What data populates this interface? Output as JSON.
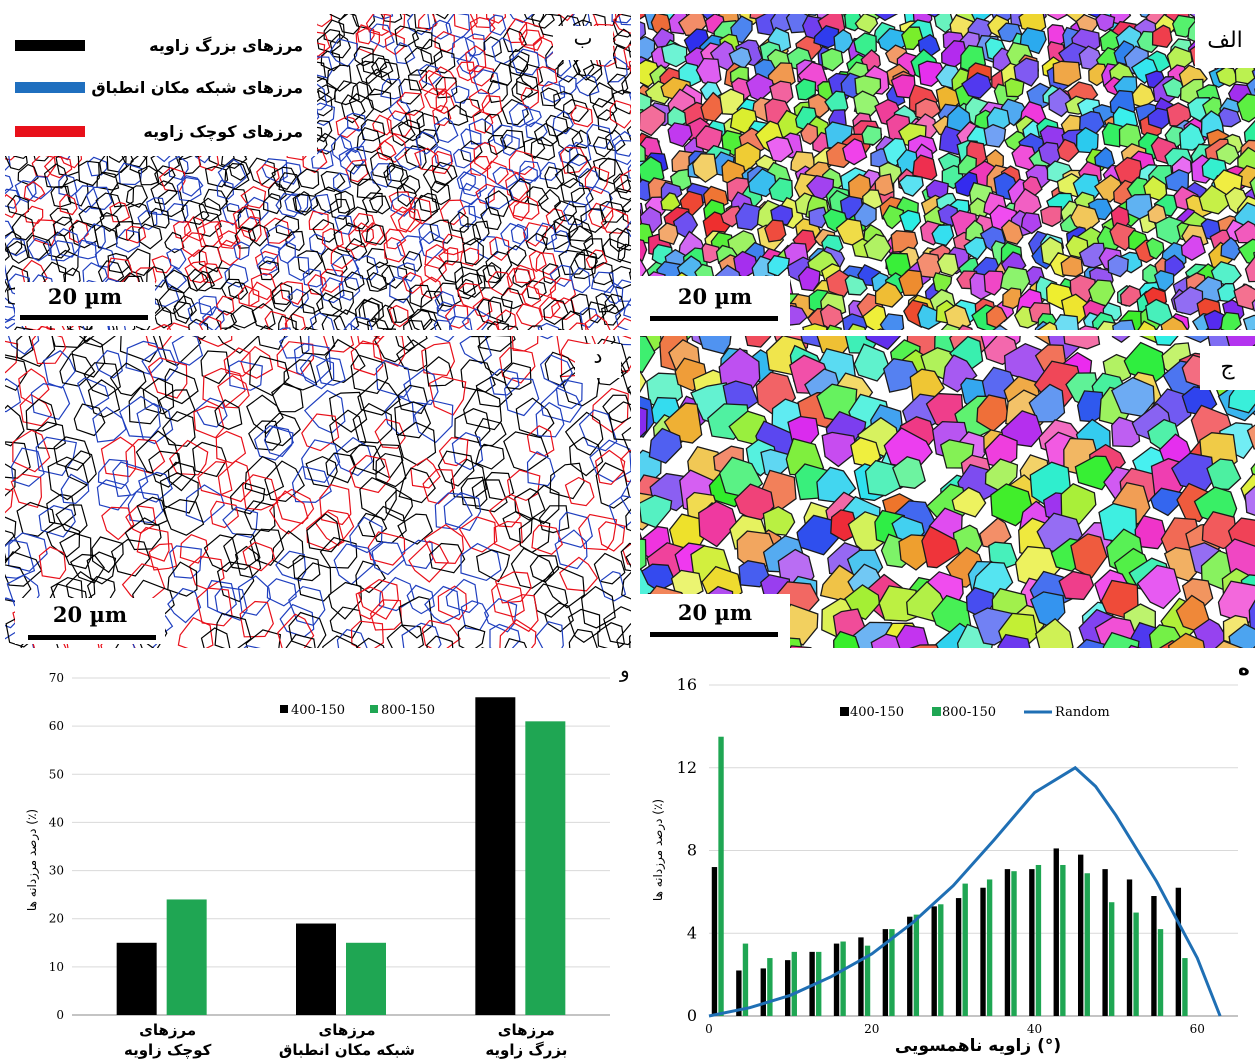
{
  "panels": {
    "b": {
      "letter": "ب"
    },
    "a": {
      "letter": "الف"
    },
    "d": {
      "letter": "د"
    },
    "c": {
      "letter": "ج"
    },
    "f": {
      "letter": "و"
    },
    "e": {
      "letter": "ه"
    }
  },
  "scale_bar": "20 µm",
  "legend_boundaries": [
    {
      "label": "مرزهای بزرگ زاویه",
      "color": "#000000"
    },
    {
      "label": "مرزهای شبکه مکان انطباق",
      "color": "#1f6fbf"
    },
    {
      "label": "مرزهای کوچک زاویه",
      "color": "#e8101a"
    }
  ],
  "colors": {
    "s400": "#000000",
    "s800": "#1fa653",
    "random": "#1f6fb4"
  },
  "chart_data": [
    {
      "type": "bar",
      "panel": "و",
      "ylabel": "درصد مرزدانه ها (٪)",
      "ylim": [
        0,
        70
      ],
      "yticks": [
        "0",
        "10",
        "20",
        "30",
        "40",
        "50",
        "60",
        "70"
      ],
      "categories": [
        [
          "مرزهای",
          "کوچک زاویه"
        ],
        [
          "مرزهای",
          "شبکه مکان انطباق"
        ],
        [
          "مرزهای",
          "بزرگ زاویه"
        ]
      ],
      "series": [
        {
          "name": "400-150",
          "values": [
            15,
            19,
            66
          ]
        },
        {
          "name": "800-150",
          "values": [
            24,
            15,
            61
          ]
        }
      ],
      "legend": "top-center",
      "grid": true
    },
    {
      "type": "bar",
      "panel": "ه",
      "xlabel": "زاویه ناهمسویی (°)",
      "ylabel": "درصد مرزدانه ها (٪)",
      "xlim": [
        0,
        65
      ],
      "ylim": [
        0,
        16
      ],
      "xticks": [
        "0",
        "20",
        "40",
        "60"
      ],
      "yticks": [
        "0",
        "4",
        "8",
        "12",
        "16"
      ],
      "x": [
        1,
        4,
        7,
        10,
        13,
        16,
        19,
        22,
        25,
        28,
        31,
        34,
        37,
        40,
        43,
        46,
        49,
        52,
        55,
        58,
        61
      ],
      "series": [
        {
          "name": "400-150",
          "type": "bar",
          "values": [
            7.2,
            2.2,
            2.3,
            2.7,
            3.1,
            3.5,
            3.8,
            4.2,
            4.8,
            5.3,
            5.7,
            6.2,
            7.1,
            7.1,
            8.1,
            7.8,
            7.1,
            6.6,
            5.8,
            6.2,
            0
          ]
        },
        {
          "name": "800-150",
          "type": "bar",
          "values": [
            13.5,
            3.5,
            2.8,
            3.1,
            3.1,
            3.6,
            3.4,
            4.2,
            4.9,
            5.4,
            6.4,
            6.6,
            7.0,
            7.3,
            7.3,
            6.9,
            5.5,
            5.0,
            4.2,
            2.8,
            0
          ]
        },
        {
          "name": "Random",
          "type": "line",
          "x": [
            0,
            5,
            10,
            15,
            20,
            25,
            30,
            35,
            40,
            45,
            47.5,
            50,
            55,
            60,
            62.8
          ],
          "values": [
            0,
            0.4,
            1.0,
            1.9,
            3.0,
            4.5,
            6.3,
            8.5,
            10.8,
            12.0,
            11.1,
            9.7,
            6.5,
            2.8,
            0
          ]
        }
      ],
      "legend": "top",
      "grid": true
    }
  ]
}
